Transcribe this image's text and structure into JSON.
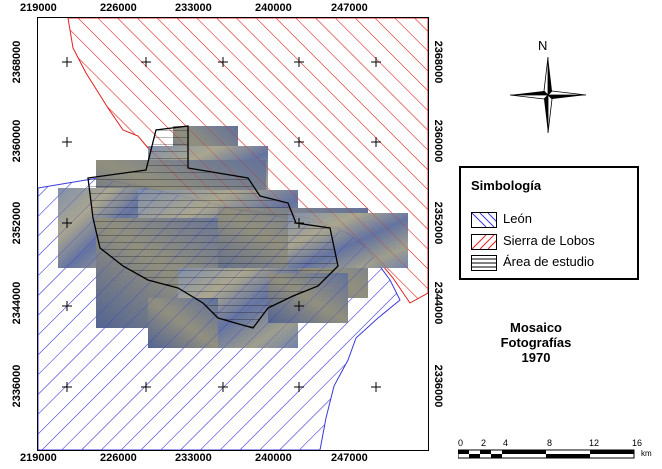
{
  "map": {
    "x_ticks": [
      "219000",
      "226000",
      "233000",
      "240000",
      "247000"
    ],
    "y_ticks": [
      "2368000",
      "2360000",
      "2352000",
      "2344000",
      "2336000"
    ],
    "colors": {
      "leon": "#3a3ad8",
      "sierra": "#e02020",
      "area": "#000000"
    }
  },
  "north_arrow": {
    "label": "N"
  },
  "legend": {
    "title": "Simbología",
    "items": [
      {
        "label": "León",
        "icon": "blue-hatch"
      },
      {
        "label": "Sierra de Lobos",
        "icon": "red-hatch"
      },
      {
        "label": "Área de estudio",
        "icon": "black-horizontal-lines"
      }
    ]
  },
  "caption": {
    "line1": "Mosaico",
    "line2": "Fotografías",
    "line3": "1970"
  },
  "scale_bar": {
    "labels": [
      "0",
      "2",
      "4",
      "8",
      "12",
      "16"
    ],
    "unit": "km"
  }
}
